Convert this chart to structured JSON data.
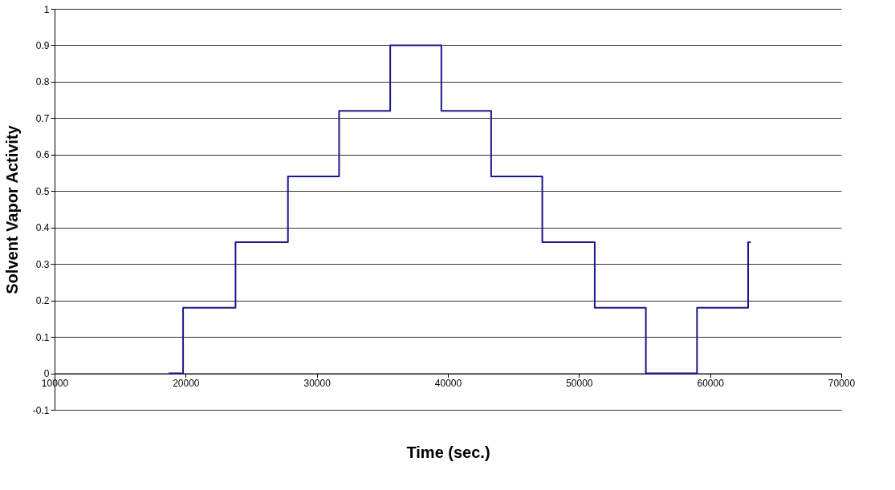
{
  "chart_data": {
    "type": "step",
    "xlabel": "Time (sec.)",
    "ylabel": "Solvent Vapor Activity",
    "x": [
      18700,
      19800,
      23800,
      27800,
      31700,
      35600,
      39500,
      43300,
      47200,
      51200,
      55100,
      59000,
      62900,
      63100
    ],
    "series": [
      {
        "color": "#1a1a8c",
        "values": [
          0,
          0.18,
          0.36,
          0.54,
          0.72,
          0.9,
          0.72,
          0.54,
          0.36,
          0.18,
          0,
          0.18,
          0.36,
          0.36
        ]
      }
    ],
    "xlim": [
      10000,
      70000
    ],
    "xticks": [
      10000,
      20000,
      30000,
      40000,
      50000,
      60000,
      70000
    ],
    "ylim": [
      -0.1,
      1
    ],
    "yticks": [
      -0.1,
      0,
      0.1,
      0.2,
      0.3,
      0.4,
      0.5,
      0.6,
      0.7,
      0.8,
      0.9,
      1
    ],
    "grid": "y",
    "marker": "none",
    "line_style": "solid"
  }
}
